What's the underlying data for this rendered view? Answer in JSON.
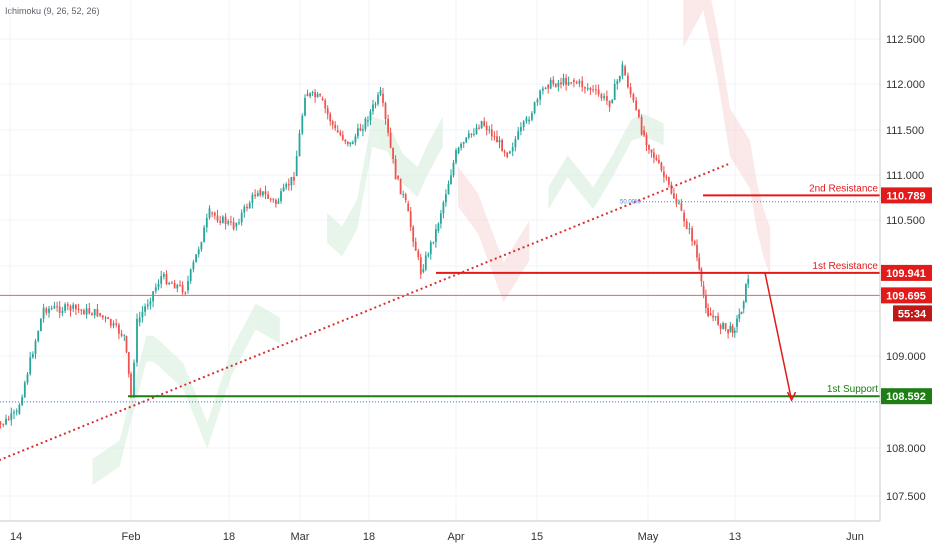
{
  "indicator_label": "Ichimoku (9, 26, 52, 26)",
  "colors": {
    "up_candle": "#26a69a",
    "down_candle": "#ef5350",
    "resistance": "#e21a1a",
    "support": "#1e7d14",
    "trendline": "#d93030",
    "price_line": "#e06666",
    "grid": "#f0f3fa",
    "axis_text": "#333333",
    "cloud_bull": "#d5ecd9",
    "cloud_bear": "#f8d7d7"
  },
  "chart_data": {
    "type": "candlestick",
    "x_ticks": [
      "14",
      "Feb",
      "18",
      "Mar",
      "18",
      "Apr",
      "15",
      "May",
      "13",
      "Jun"
    ],
    "y_ticks": [
      "107.500",
      "108.000",
      "108.500",
      "109.000",
      "109.500",
      "110.000",
      "110.500",
      "111.000",
      "111.500",
      "112.000",
      "112.500"
    ],
    "ylim": [
      107.2,
      112.9
    ],
    "levels": [
      {
        "name": "2nd Resistance",
        "value": 110.789,
        "label": "110.789",
        "type": "resistance"
      },
      {
        "name": "1st Resistance",
        "value": 109.941,
        "label": "109.941",
        "type": "resistance"
      },
      {
        "name": "",
        "value": 109.695,
        "label": "109.695",
        "type": "price"
      },
      {
        "name": "1st Support",
        "value": 108.592,
        "label": "108.592",
        "type": "support"
      }
    ],
    "countdown": "55:34",
    "fib_label": "50.00%",
    "fib_value": 110.72,
    "support_dotted_value": 108.53,
    "trendline": {
      "from": [
        "Jan 10",
        107.85
      ],
      "to": [
        "May 13",
        111.13
      ]
    },
    "arrow": {
      "from": [
        "May 17",
        109.95
      ],
      "to": [
        "May 21",
        108.55
      ]
    },
    "series": [
      {
        "name": "",
        "type": "close-anchors",
        "points": [
          [
            "Jan 10",
            108.2
          ],
          [
            "Jan 14",
            108.4
          ],
          [
            "Jan 18",
            109.55
          ],
          [
            "Jan 22",
            109.55
          ],
          [
            "Jan 26",
            109.5
          ],
          [
            "Jan 30",
            109.25
          ],
          [
            "Jan 31",
            108.6
          ],
          [
            "Feb 2",
            109.4
          ],
          [
            "Feb 6",
            109.9
          ],
          [
            "Feb 10",
            109.75
          ],
          [
            "Feb 14",
            110.6
          ],
          [
            "Feb 18",
            110.45
          ],
          [
            "Feb 22",
            110.85
          ],
          [
            "Feb 25",
            110.7
          ],
          [
            "Feb 28",
            111.0
          ],
          [
            "Mar 2",
            111.9
          ],
          [
            "Mar 5",
            111.85
          ],
          [
            "Mar 8",
            111.5
          ],
          [
            "Mar 11",
            111.35
          ],
          [
            "Mar 14",
            111.6
          ],
          [
            "Mar 17",
            111.9
          ],
          [
            "Mar 20",
            111.0
          ],
          [
            "Mar 22",
            110.7
          ],
          [
            "Mar 25",
            109.95
          ],
          [
            "Mar 28",
            110.4
          ],
          [
            "Apr 1",
            111.25
          ],
          [
            "Apr 5",
            111.6
          ],
          [
            "Apr 9",
            111.25
          ],
          [
            "Apr 12",
            111.6
          ],
          [
            "Apr 15",
            112.0
          ],
          [
            "Apr 19",
            112.05
          ],
          [
            "Apr 22",
            111.95
          ],
          [
            "Apr 25",
            111.8
          ],
          [
            "Apr 27",
            112.2
          ],
          [
            "Apr 30",
            111.5
          ],
          [
            "May 3",
            111.05
          ],
          [
            "May 6",
            110.6
          ],
          [
            "May 8",
            110.25
          ],
          [
            "May 9",
            109.8
          ],
          [
            "May 10",
            109.5
          ],
          [
            "May 13",
            109.3
          ],
          [
            "May 14",
            109.35
          ],
          [
            "May 15",
            109.55
          ],
          [
            "May 16",
            109.9
          ]
        ]
      }
    ]
  }
}
